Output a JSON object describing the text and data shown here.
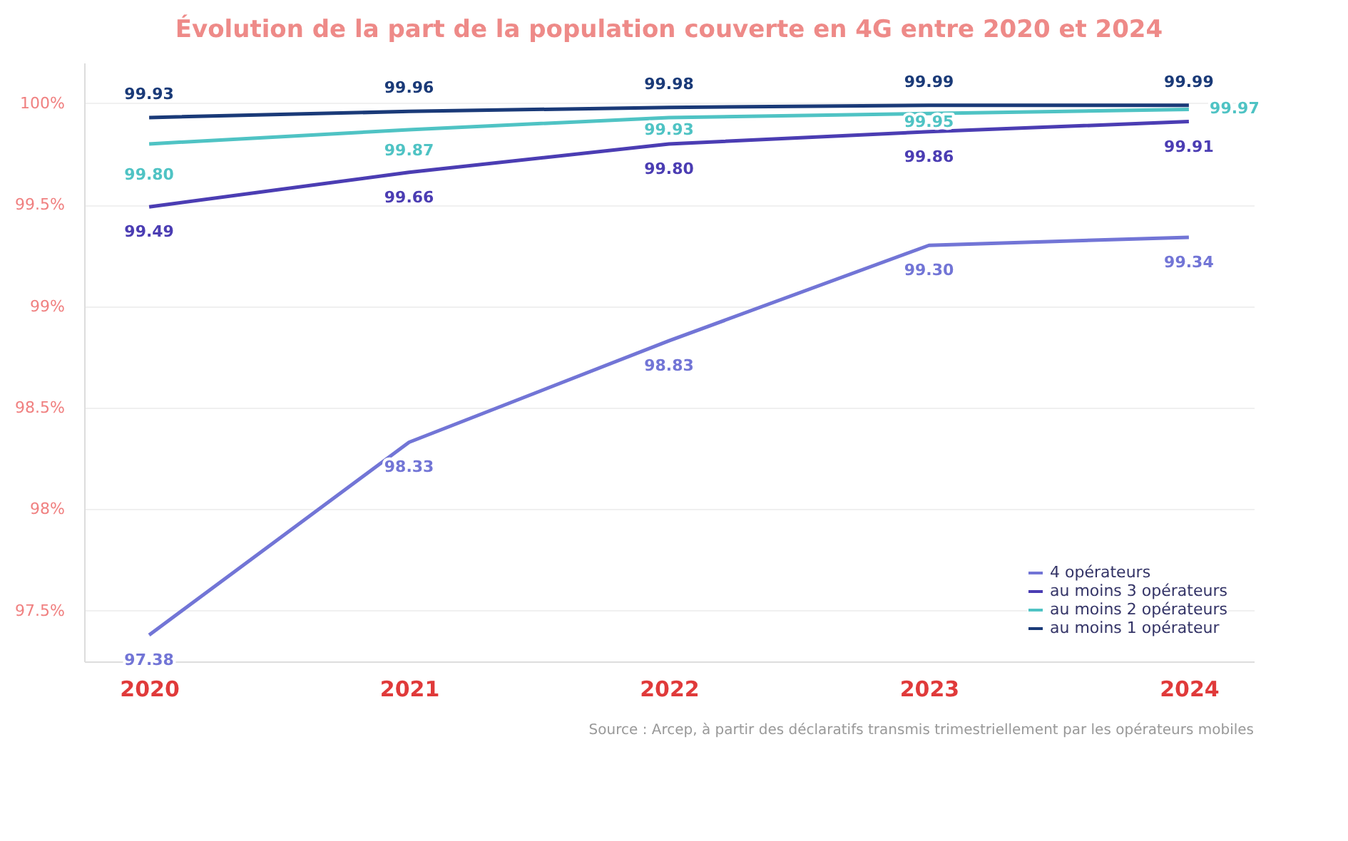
{
  "chart_data": {
    "type": "line",
    "title": "Évolution de la part de la population couverte en 4G entre 2020 et 2024",
    "categories": [
      "2020",
      "2021",
      "2022",
      "2023",
      "2024"
    ],
    "series": [
      {
        "name": "4 opérateurs",
        "color": "#7275d6",
        "values": [
          97.38,
          98.33,
          98.83,
          99.3,
          99.34
        ],
        "value_labels": [
          "97.38",
          "98.33",
          "98.83",
          "99.30",
          "99.34"
        ]
      },
      {
        "name": "au moins 3 opérateurs",
        "color": "#4b3db3",
        "values": [
          99.49,
          99.66,
          99.8,
          99.86,
          99.91
        ],
        "value_labels": [
          "99.49",
          "99.66",
          "99.80",
          "99.86",
          "99.91"
        ]
      },
      {
        "name": "au moins 2 opérateurs",
        "color": "#4fc3c4",
        "values": [
          99.8,
          99.87,
          99.93,
          99.95,
          99.97
        ],
        "value_labels": [
          "99.80",
          "99.87",
          "99.93",
          "99.95",
          "99.97"
        ]
      },
      {
        "name": "au moins 1 opérateur",
        "color": "#1a3a78",
        "values": [
          99.93,
          99.96,
          99.98,
          99.99,
          99.99
        ],
        "value_labels": [
          "99.93",
          "99.96",
          "99.98",
          "99.99",
          "99.99"
        ]
      }
    ],
    "ylim": [
      97.25,
      100.2
    ],
    "yticks": [
      {
        "value": 97.5,
        "label": "97.5%"
      },
      {
        "value": 98,
        "label": "98%"
      },
      {
        "value": 98.5,
        "label": "98.5%"
      },
      {
        "value": 99,
        "label": "99%"
      },
      {
        "value": 99.5,
        "label": "99.5%"
      },
      {
        "value": 100,
        "label": "100%"
      }
    ],
    "grid": "y",
    "legend": "bottom right",
    "marker": "none",
    "line_style": "solid",
    "annotations": [
      "Source : Arcep, à partir des déclaratifs transmis trimestriellement par les opérateurs mobiles"
    ]
  }
}
